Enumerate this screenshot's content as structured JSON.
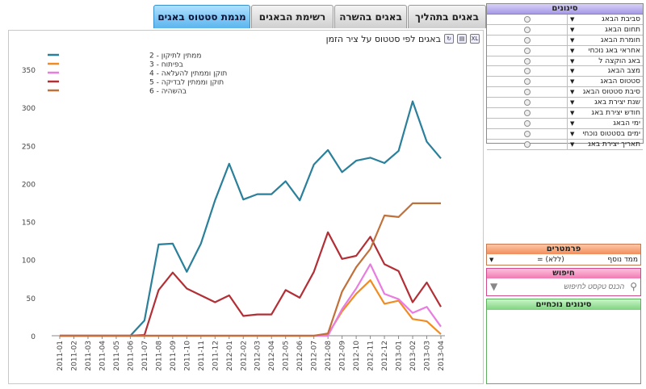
{
  "tabs": [
    {
      "label": "מגמת סטטוס באגים",
      "active": true
    },
    {
      "label": "רשימת הבאגים",
      "active": false
    },
    {
      "label": "באגים בהשרה",
      "active": false
    },
    {
      "label": "באגים בתהליך",
      "active": false
    }
  ],
  "chart_panel": {
    "title": "באגים לפי סטטוס על ציר הזמן",
    "icons": [
      "excel-icon",
      "print-icon",
      "refresh-icon"
    ]
  },
  "chart_data": {
    "type": "line",
    "x": [
      "2011-01",
      "2011-02",
      "2011-03",
      "2011-04",
      "2011-05",
      "2011-06",
      "2011-07",
      "2011-08",
      "2011-09",
      "2011-10",
      "2011-11",
      "2011-12",
      "2012-01",
      "2012-02",
      "2012-03",
      "2012-04",
      "2012-05",
      "2012-06",
      "2012-07",
      "2012-08",
      "2012-09",
      "2012-10",
      "2012-11",
      "2012-12",
      "2013-01",
      "2013-02",
      "2013-03",
      "2013-04"
    ],
    "ylim": [
      0,
      350
    ],
    "yticks": [
      0,
      50,
      100,
      150,
      200,
      250,
      300,
      350
    ],
    "series": [
      {
        "name": "ממתין לתיקון - 2",
        "color": "#2a7f9a",
        "values": [
          0,
          0,
          0,
          0,
          0,
          0,
          20,
          120,
          121,
          84,
          121,
          178,
          226,
          179,
          186,
          186,
          203,
          178,
          225,
          244,
          215,
          230,
          234,
          227,
          243,
          308,
          255,
          233
        ]
      },
      {
        "name": "בפיתוח - 3",
        "color": "#f08c22",
        "values": [
          0,
          0,
          0,
          0,
          0,
          0,
          0,
          0,
          0,
          0,
          0,
          0,
          0,
          0,
          0,
          0,
          0,
          0,
          0,
          2,
          32,
          55,
          73,
          42,
          46,
          22,
          19,
          2
        ]
      },
      {
        "name": "תוקן וממתין להעלאה - 4",
        "color": "#e87de0",
        "values": [
          0,
          0,
          0,
          0,
          0,
          0,
          0,
          0,
          0,
          0,
          0,
          0,
          0,
          0,
          0,
          0,
          0,
          0,
          0,
          0,
          35,
          62,
          94,
          55,
          48,
          30,
          38,
          12
        ]
      },
      {
        "name": "תוקן וממתין לבדיקה - 5",
        "color": "#b32f36",
        "values": [
          0,
          0,
          0,
          0,
          0,
          0,
          1,
          60,
          83,
          62,
          53,
          44,
          53,
          26,
          28,
          28,
          60,
          50,
          84,
          136,
          101,
          105,
          130,
          94,
          85,
          44,
          70,
          38
        ]
      },
      {
        "name": "בהשהיה - 6",
        "color": "#c0703a",
        "values": [
          0,
          0,
          0,
          0,
          0,
          0,
          0,
          0,
          0,
          0,
          0,
          0,
          0,
          0,
          0,
          0,
          0,
          0,
          0,
          3,
          58,
          90,
          114,
          158,
          156,
          174,
          174,
          174
        ]
      }
    ]
  },
  "filters": {
    "title": "סינונים",
    "items": [
      "סביבת הבאג",
      "תחום הבאג",
      "חומרת הבאג",
      "אחראי באג נוכחי",
      "באג הוקצה ל",
      "מצב הבאג",
      "סטטוס הבאג",
      "סיבת סטטוס הבאג",
      "שנת יצירת באג",
      "חודש יצירת באג",
      "ימי הבאג",
      "ימים בסטטוס נוכחי",
      "תאריך יצירת באג"
    ]
  },
  "params": {
    "title": "פרמטרים",
    "label": "ממד נוסף",
    "operator": "=",
    "value": "(ללא)"
  },
  "search": {
    "title": "חיפוש",
    "placeholder": "הכנס טקסט לחיפוש"
  },
  "current_filters": {
    "title": "סינונים נוכחיים"
  }
}
